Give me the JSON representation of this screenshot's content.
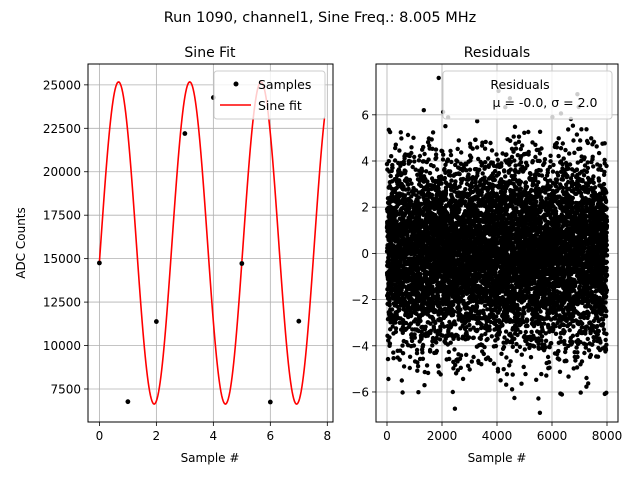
{
  "figure": {
    "suptitle": "Run 1090, channel1, Sine Freq.: 8.005 MHz"
  },
  "chart_data": [
    {
      "type": "line",
      "title": "Sine Fit",
      "xlabel": "Sample #",
      "ylabel": "ADC Counts",
      "xlim": [
        -0.4,
        8.2
      ],
      "ylim": [
        5600,
        26200
      ],
      "xticks": [
        0,
        2,
        4,
        6,
        8
      ],
      "yticks": [
        7500,
        10000,
        12500,
        15000,
        17500,
        20000,
        22500,
        25000
      ],
      "grid": true,
      "legend_position": "top-right",
      "series": [
        {
          "name": "Samples",
          "kind": "scatter",
          "color": "#000000",
          "x": [
            0,
            1,
            2,
            3,
            4,
            5,
            6,
            7
          ],
          "y": [
            14750,
            6770,
            11380,
            22200,
            24270,
            14720,
            6750,
            11400
          ]
        },
        {
          "name": "Sine fit",
          "kind": "line",
          "color": "#ff0000",
          "x_range": [
            0,
            7.9
          ],
          "model": {
            "offset": 15900,
            "amplitude": 9270,
            "cycles_per_sample": 0.4,
            "phase_rad": -0.12
          }
        }
      ]
    },
    {
      "type": "scatter",
      "title": "Residuals",
      "xlabel": "Sample #",
      "ylabel": "",
      "xlim": [
        -400,
        8400
      ],
      "ylim": [
        -7.3,
        8.2
      ],
      "xticks": [
        0,
        2000,
        4000,
        6000,
        8000
      ],
      "yticks": [
        -6,
        -4,
        -2,
        0,
        2,
        4,
        6
      ],
      "grid": true,
      "legend_position": "top-right",
      "series": [
        {
          "name": "Residuals",
          "color": "#000000",
          "n_points": 8000,
          "mean": -0.0,
          "sigma": 2.0,
          "x_range": [
            0,
            8000
          ]
        }
      ],
      "legend_title": "Residuals",
      "legend_stats": "μ = -0.0, σ = 2.0"
    }
  ]
}
